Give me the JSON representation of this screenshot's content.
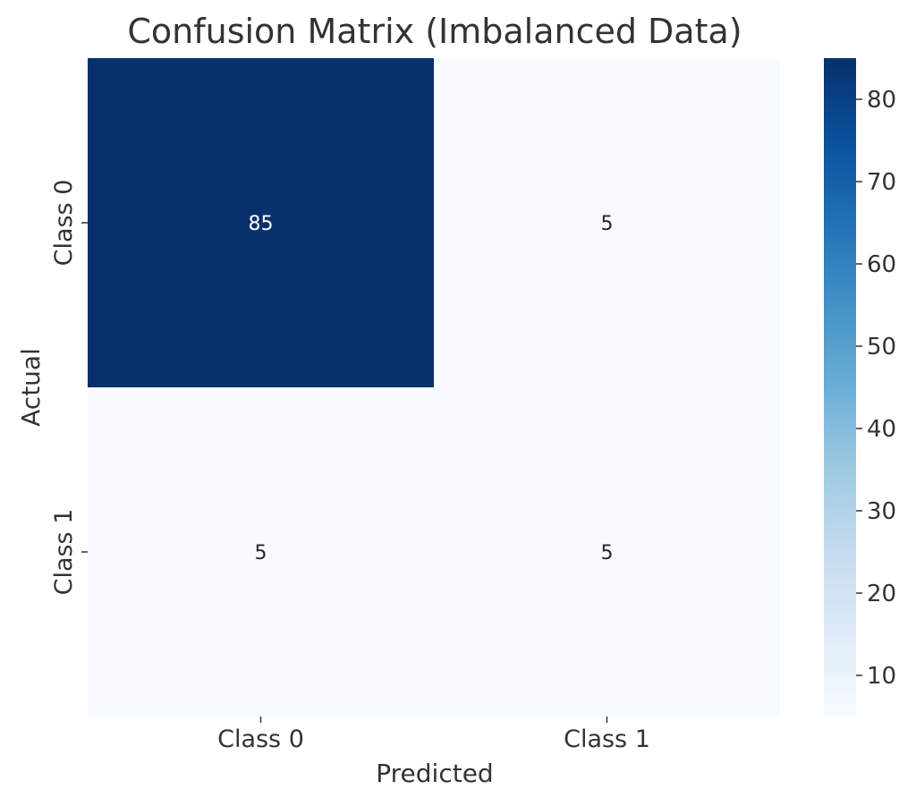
{
  "chart_data": {
    "type": "heatmap",
    "title": "Confusion Matrix (Imbalanced Data)",
    "xlabel": "Predicted",
    "ylabel": "Actual",
    "x_categories": [
      "Class 0",
      "Class 1"
    ],
    "y_categories": [
      "Class 0",
      "Class 1"
    ],
    "values": [
      [
        85,
        5
      ],
      [
        5,
        5
      ]
    ],
    "colormap": "Blues",
    "colorbar": {
      "min": 5,
      "max": 85,
      "ticks": [
        10,
        20,
        30,
        40,
        50,
        60,
        70,
        80
      ],
      "tick_labels": [
        "10",
        "20",
        "30",
        "40",
        "50",
        "60",
        "70",
        "80"
      ]
    },
    "colors": {
      "low": "#f7fbff",
      "high": "#08306b"
    }
  }
}
